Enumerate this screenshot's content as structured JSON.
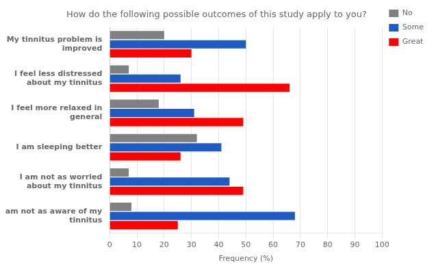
{
  "chart_data": {
    "type": "bar",
    "orientation": "horizontal",
    "title": "How do the following possible outcomes of this study apply to you?",
    "categories": [
      "My tinnitus problem is\nimproved",
      "I feel less distressed\nabout my tinnitus",
      "I feel more relaxed in\ngeneral",
      "I am sleeping better",
      "I am not as worried\nabout my tinnitus",
      "I am not as aware of my\ntinnitus"
    ],
    "series": [
      {
        "name": "No",
        "color": "#808080",
        "values": [
          20,
          7,
          18,
          32,
          7,
          8
        ]
      },
      {
        "name": "Some",
        "color": "#1f5bc4",
        "values": [
          50,
          26,
          31,
          41,
          44,
          68
        ]
      },
      {
        "name": "Great",
        "color": "#ff0000",
        "values": [
          30,
          66,
          49,
          26,
          49,
          25
        ]
      }
    ],
    "xlabel": "Frequency (%)",
    "xlim": [
      0,
      100
    ],
    "xticks": [
      0,
      10,
      20,
      30,
      40,
      50,
      60,
      70,
      80,
      90,
      100
    ],
    "grid": true,
    "legend": "right"
  }
}
